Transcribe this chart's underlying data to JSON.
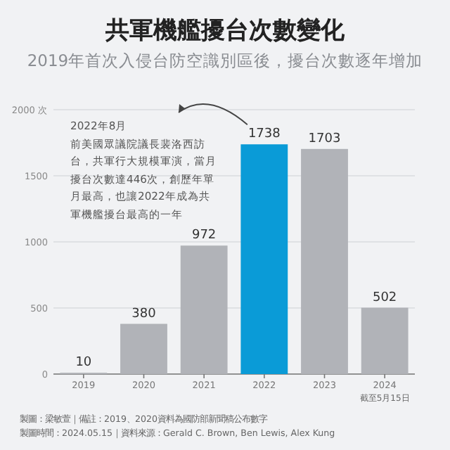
{
  "chart_data": {
    "type": "bar",
    "title": "共軍機艦擾台次數變化",
    "subtitle": "2019年首次入侵台防空識別區後，擾台次數逐年增加",
    "categories": [
      "2019",
      "2020",
      "2021",
      "2022",
      "2023",
      "2024"
    ],
    "values": [
      10,
      380,
      972,
      1738,
      1703,
      502
    ],
    "colors": [
      "#b1b3b8",
      "#b1b3b8",
      "#b1b3b8",
      "#0a9bd7",
      "#b1b3b8",
      "#b1b3b8"
    ],
    "ylim": [
      0,
      2000
    ],
    "yticks": [
      0,
      500,
      1000,
      1500,
      {
        "value": 2000,
        "label": "2000 次"
      }
    ],
    "grid": "y",
    "data_labels": true,
    "annotations": [
      "2022年8月",
      "前美國眾議院議長裴洛西訪台，共軍行大規模軍演，當月擾台次數達446次，創歷年單月最高，也讓2022年成為共軍機艦擾台最高的一年",
      "截至5月15日",
      "製圖：梁敏萱｜備註：2019、2020資料為國防部新聞稿公布數字",
      "製圖時間：2024.05.15｜資料來源：Gerald C. Brown, Ben Lewis, Alex Kung"
    ]
  }
}
